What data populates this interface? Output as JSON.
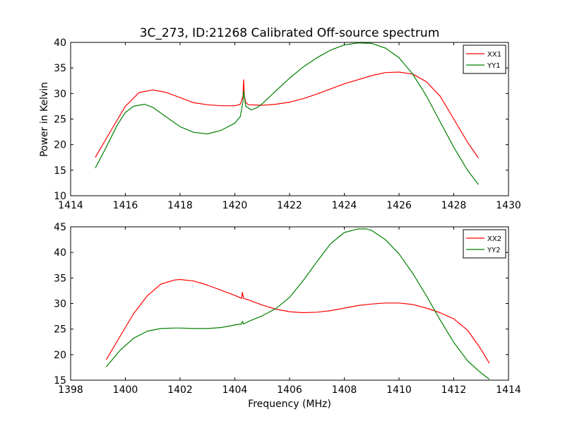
{
  "figure": {
    "title": "3C_273, ID:21268 Calibrated Off-source spectrum",
    "ylabel": "Power in Kelvin",
    "xlabel": "Frequency (MHz)"
  },
  "chart_data": [
    {
      "type": "line",
      "title": "3C_273, ID:21268 Calibrated Off-source spectrum",
      "xlabel": "",
      "ylabel": "Power in Kelvin",
      "xlim": [
        1414,
        1430
      ],
      "ylim": [
        10,
        40
      ],
      "xticks": [
        1414,
        1416,
        1418,
        1420,
        1422,
        1424,
        1426,
        1428,
        1430
      ],
      "yticks": [
        10,
        15,
        20,
        25,
        30,
        35,
        40
      ],
      "grid": false,
      "legend": "top-right",
      "series": [
        {
          "name": "XX1",
          "color": "#ff0000",
          "x": [
            1414.9,
            1415.5,
            1416.0,
            1416.5,
            1417.0,
            1417.5,
            1418.0,
            1418.5,
            1419.0,
            1419.5,
            1420.0,
            1420.2,
            1420.3,
            1420.32,
            1420.35,
            1420.4,
            1420.5,
            1421.0,
            1421.5,
            1422.0,
            1422.5,
            1423.0,
            1423.5,
            1424.0,
            1424.5,
            1425.0,
            1425.5,
            1426.0,
            1426.5,
            1427.0,
            1427.5,
            1428.0,
            1428.5,
            1428.9
          ],
          "y": [
            17.5,
            23.0,
            27.5,
            30.2,
            30.7,
            30.2,
            29.2,
            28.2,
            27.8,
            27.6,
            27.6,
            27.9,
            29.5,
            32.7,
            29.5,
            28.2,
            27.8,
            27.7,
            27.9,
            28.3,
            29.0,
            29.9,
            30.9,
            31.9,
            32.7,
            33.5,
            34.1,
            34.2,
            33.8,
            32.3,
            29.5,
            25.0,
            20.5,
            17.4
          ]
        },
        {
          "name": "YY1",
          "color": "#008000",
          "x": [
            1414.9,
            1415.3,
            1415.7,
            1416.0,
            1416.3,
            1416.7,
            1417.0,
            1417.5,
            1418.0,
            1418.5,
            1419.0,
            1419.5,
            1420.0,
            1420.2,
            1420.3,
            1420.32,
            1420.4,
            1420.6,
            1420.8,
            1421.0,
            1421.5,
            1422.0,
            1422.5,
            1423.0,
            1423.5,
            1424.0,
            1424.5,
            1425.0,
            1425.5,
            1426.0,
            1426.5,
            1427.0,
            1427.5,
            1428.0,
            1428.5,
            1428.9
          ],
          "y": [
            15.4,
            19.5,
            23.8,
            26.3,
            27.5,
            27.9,
            27.3,
            25.4,
            23.5,
            22.4,
            22.1,
            22.8,
            24.2,
            25.5,
            28.5,
            30.5,
            27.5,
            26.8,
            27.2,
            28.0,
            30.5,
            33.0,
            35.2,
            37.0,
            38.5,
            39.5,
            39.9,
            39.8,
            38.9,
            37.0,
            33.8,
            29.5,
            24.5,
            19.5,
            15.0,
            12.2
          ]
        }
      ]
    },
    {
      "type": "line",
      "title": "",
      "xlabel": "Frequency (MHz)",
      "ylabel": "",
      "xlim": [
        1398,
        1414
      ],
      "ylim": [
        15,
        45
      ],
      "xticks": [
        1398,
        1400,
        1402,
        1404,
        1406,
        1408,
        1410,
        1412,
        1414
      ],
      "yticks": [
        15,
        20,
        25,
        30,
        35,
        40,
        45
      ],
      "grid": false,
      "legend": "top-right",
      "series": [
        {
          "name": "XX2",
          "color": "#ff0000",
          "x": [
            1399.3,
            1399.8,
            1400.3,
            1400.8,
            1401.3,
            1401.8,
            1402.0,
            1402.5,
            1403.0,
            1403.5,
            1404.0,
            1404.25,
            1404.28,
            1404.32,
            1404.5,
            1405.0,
            1405.5,
            1406.0,
            1406.5,
            1407.0,
            1407.5,
            1408.0,
            1408.5,
            1409.0,
            1409.5,
            1410.0,
            1410.5,
            1411.0,
            1411.5,
            1412.0,
            1412.5,
            1413.0,
            1413.3
          ],
          "y": [
            19.0,
            23.5,
            28.0,
            31.5,
            33.8,
            34.6,
            34.7,
            34.4,
            33.6,
            32.6,
            31.6,
            31.0,
            32.2,
            31.0,
            30.7,
            29.7,
            28.9,
            28.4,
            28.2,
            28.3,
            28.6,
            29.1,
            29.6,
            29.9,
            30.1,
            30.1,
            29.8,
            29.1,
            28.2,
            27.0,
            24.8,
            21.0,
            18.3
          ]
        },
        {
          "name": "YY2",
          "color": "#008000",
          "x": [
            1399.3,
            1399.8,
            1400.3,
            1400.8,
            1401.3,
            1401.8,
            1402.0,
            1402.5,
            1403.0,
            1403.5,
            1404.0,
            1404.25,
            1404.28,
            1404.32,
            1404.5,
            1405.0,
            1405.5,
            1406.0,
            1406.5,
            1407.0,
            1407.5,
            1408.0,
            1408.5,
            1408.8,
            1409.0,
            1409.5,
            1410.0,
            1410.5,
            1411.0,
            1411.5,
            1412.0,
            1412.5,
            1413.0,
            1413.3
          ],
          "y": [
            17.6,
            20.8,
            23.2,
            24.6,
            25.1,
            25.2,
            25.2,
            25.1,
            25.1,
            25.3,
            25.8,
            26.0,
            26.5,
            26.0,
            26.5,
            27.6,
            29.0,
            31.2,
            34.5,
            38.2,
            41.7,
            43.9,
            44.6,
            44.6,
            44.3,
            42.5,
            39.7,
            35.9,
            31.5,
            26.8,
            22.4,
            18.8,
            16.4,
            15.2
          ]
        }
      ]
    }
  ]
}
